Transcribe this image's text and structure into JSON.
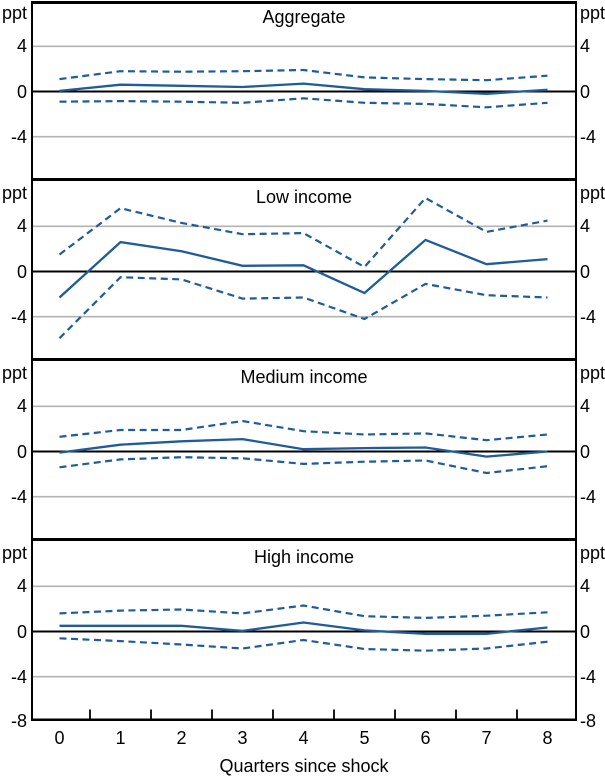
{
  "figure": {
    "x_axis_label": "Quarters since shock",
    "unit_label": "ppt",
    "y_tick_labels": [
      "4",
      "0",
      "-4"
    ],
    "y_bottom_label": "-8",
    "x_tick_labels": [
      "0",
      "1",
      "2",
      "3",
      "4",
      "5",
      "6",
      "7",
      "8"
    ]
  },
  "colors": {
    "line_blue": "#1f5c99",
    "gridline_gray": "#b3b3b3",
    "axis_black": "#000000",
    "background": "#ffffff"
  },
  "chart_data": [
    {
      "type": "line",
      "title": "Aggregate",
      "x": [
        0,
        1,
        2,
        3,
        4,
        5,
        6,
        7,
        8
      ],
      "xlim": [
        -0.5,
        8.5
      ],
      "ylim": [
        -8,
        8
      ],
      "yticks": [
        -8,
        -4,
        0,
        4,
        8
      ],
      "ylabel": "ppt",
      "grid": true,
      "legend": "none",
      "series": [
        {
          "name": "point estimate",
          "style": "solid",
          "values": [
            0.05,
            0.6,
            0.5,
            0.4,
            0.7,
            0.2,
            0.05,
            -0.2,
            0.15
          ]
        },
        {
          "name": "upper confidence band",
          "style": "dashed",
          "values": [
            1.1,
            1.8,
            1.75,
            1.8,
            1.9,
            1.25,
            1.1,
            1.0,
            1.4
          ]
        },
        {
          "name": "lower confidence band",
          "style": "dashed",
          "values": [
            -0.9,
            -0.85,
            -0.9,
            -1.0,
            -0.6,
            -1.0,
            -1.1,
            -1.4,
            -1.0
          ]
        }
      ]
    },
    {
      "type": "line",
      "title": "Low income",
      "x": [
        0,
        1,
        2,
        3,
        4,
        5,
        6,
        7,
        8
      ],
      "xlim": [
        -0.5,
        8.5
      ],
      "ylim": [
        -8,
        8
      ],
      "yticks": [
        -8,
        -4,
        0,
        4,
        8
      ],
      "ylabel": "ppt",
      "grid": true,
      "legend": "none",
      "series": [
        {
          "name": "point estimate",
          "style": "solid",
          "values": [
            -2.3,
            2.6,
            1.8,
            0.5,
            0.55,
            -1.9,
            2.8,
            0.65,
            1.1
          ]
        },
        {
          "name": "upper confidence band",
          "style": "dashed",
          "values": [
            1.5,
            5.6,
            4.3,
            3.3,
            3.4,
            0.4,
            6.5,
            3.5,
            4.5
          ]
        },
        {
          "name": "lower confidence band",
          "style": "dashed",
          "values": [
            -5.9,
            -0.5,
            -0.7,
            -2.4,
            -2.3,
            -4.2,
            -1.1,
            -2.1,
            -2.3
          ]
        }
      ]
    },
    {
      "type": "line",
      "title": "Medium income",
      "x": [
        0,
        1,
        2,
        3,
        4,
        5,
        6,
        7,
        8
      ],
      "xlim": [
        -0.5,
        8.5
      ],
      "ylim": [
        -8,
        8
      ],
      "yticks": [
        -8,
        -4,
        0,
        4,
        8
      ],
      "ylabel": "ppt",
      "grid": true,
      "legend": "none",
      "series": [
        {
          "name": "point estimate",
          "style": "solid",
          "values": [
            -0.1,
            0.6,
            0.9,
            1.1,
            0.2,
            0.3,
            0.35,
            -0.45,
            0.0
          ]
        },
        {
          "name": "upper confidence band",
          "style": "dashed",
          "values": [
            1.3,
            1.9,
            1.9,
            2.7,
            1.8,
            1.5,
            1.6,
            1.0,
            1.5
          ]
        },
        {
          "name": "lower confidence band",
          "style": "dashed",
          "values": [
            -1.4,
            -0.7,
            -0.5,
            -0.6,
            -1.1,
            -0.9,
            -0.8,
            -1.9,
            -1.3
          ]
        }
      ]
    },
    {
      "type": "line",
      "title": "High income",
      "x": [
        0,
        1,
        2,
        3,
        4,
        5,
        6,
        7,
        8
      ],
      "xlim": [
        -0.5,
        8.5
      ],
      "ylim": [
        -8,
        8
      ],
      "yticks": [
        -8,
        -4,
        0,
        4,
        8
      ],
      "ylabel": "ppt",
      "grid": true,
      "legend": "none",
      "series": [
        {
          "name": "point estimate",
          "style": "solid",
          "values": [
            0.5,
            0.5,
            0.5,
            0.05,
            0.8,
            0.1,
            -0.2,
            -0.2,
            0.35
          ]
        },
        {
          "name": "upper confidence band",
          "style": "dashed",
          "values": [
            1.6,
            1.85,
            1.95,
            1.6,
            2.3,
            1.35,
            1.2,
            1.4,
            1.7
          ]
        },
        {
          "name": "lower confidence band",
          "style": "dashed",
          "values": [
            -0.6,
            -0.85,
            -1.15,
            -1.5,
            -0.75,
            -1.55,
            -1.7,
            -1.5,
            -0.9
          ]
        }
      ]
    }
  ]
}
